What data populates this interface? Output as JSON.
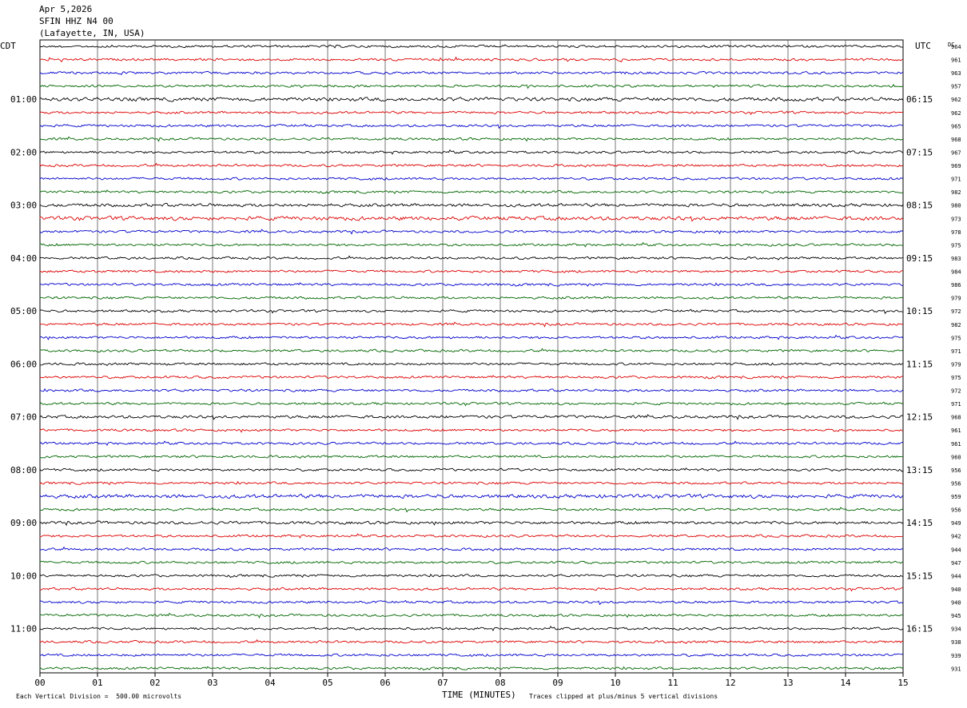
{
  "header": {
    "date": "Apr 5,2026",
    "station": "SFIN HHZ N4 00",
    "location": "(Lafayette, IN, USA)"
  },
  "left_axis_label": "CDT",
  "right_axis_label": "UTC",
  "dc_label": "DC",
  "footer": {
    "scale_note": "Each Vertical Division =  500.00 microvolts",
    "xlabel": "TIME (MINUTES)",
    "clip_note": "Traces clipped at plus/minus 5 vertical divisions"
  },
  "colors": {
    "trace_cycle": [
      "#000000",
      "#dd0000",
      "#0000cc",
      "#006600"
    ],
    "grid": "#000000"
  },
  "chart_data": {
    "type": "line",
    "title": "",
    "xlabel": "TIME (MINUTES)",
    "x_ticks": [
      "00",
      "01",
      "02",
      "03",
      "04",
      "05",
      "06",
      "07",
      "08",
      "09",
      "10",
      "11",
      "12",
      "13",
      "14",
      "15"
    ],
    "xlim": [
      0,
      15
    ],
    "traces_per_hour": 4,
    "trace_count": 48,
    "left_time_labels": [
      "01:00",
      "02:00",
      "03:00",
      "04:00",
      "05:00",
      "06:00",
      "07:00",
      "08:00",
      "09:00",
      "10:00",
      "11:00"
    ],
    "right_time_labels": [
      "06:15",
      "07:15",
      "08:15",
      "09:15",
      "10:15",
      "11:15",
      "12:15",
      "13:15",
      "14:15",
      "15:15",
      "16:15"
    ],
    "dc_offsets": [
      964,
      961,
      963,
      957,
      962,
      962,
      965,
      968,
      967,
      969,
      971,
      982,
      980,
      973,
      978,
      975,
      983,
      984,
      986,
      979,
      972,
      982,
      975,
      971,
      979,
      975,
      972,
      971,
      968,
      961,
      961,
      960,
      956,
      956,
      959,
      956,
      949,
      942,
      944,
      947,
      944,
      940,
      940,
      945,
      934,
      938,
      939,
      931
    ],
    "trace_amplitude_levels": [
      1,
      1,
      1,
      1,
      1.5,
      1,
      1,
      1,
      1,
      1,
      1,
      1,
      1.3,
      1.6,
      1,
      1,
      1,
      1,
      1,
      1,
      1,
      1,
      1,
      1,
      1,
      1,
      1,
      1,
      1.2,
      1,
      1,
      1,
      1,
      1,
      1.5,
      1,
      1.2,
      1,
      1,
      1,
      1,
      1,
      1,
      1,
      1,
      1,
      1,
      1
    ],
    "grid": true
  }
}
